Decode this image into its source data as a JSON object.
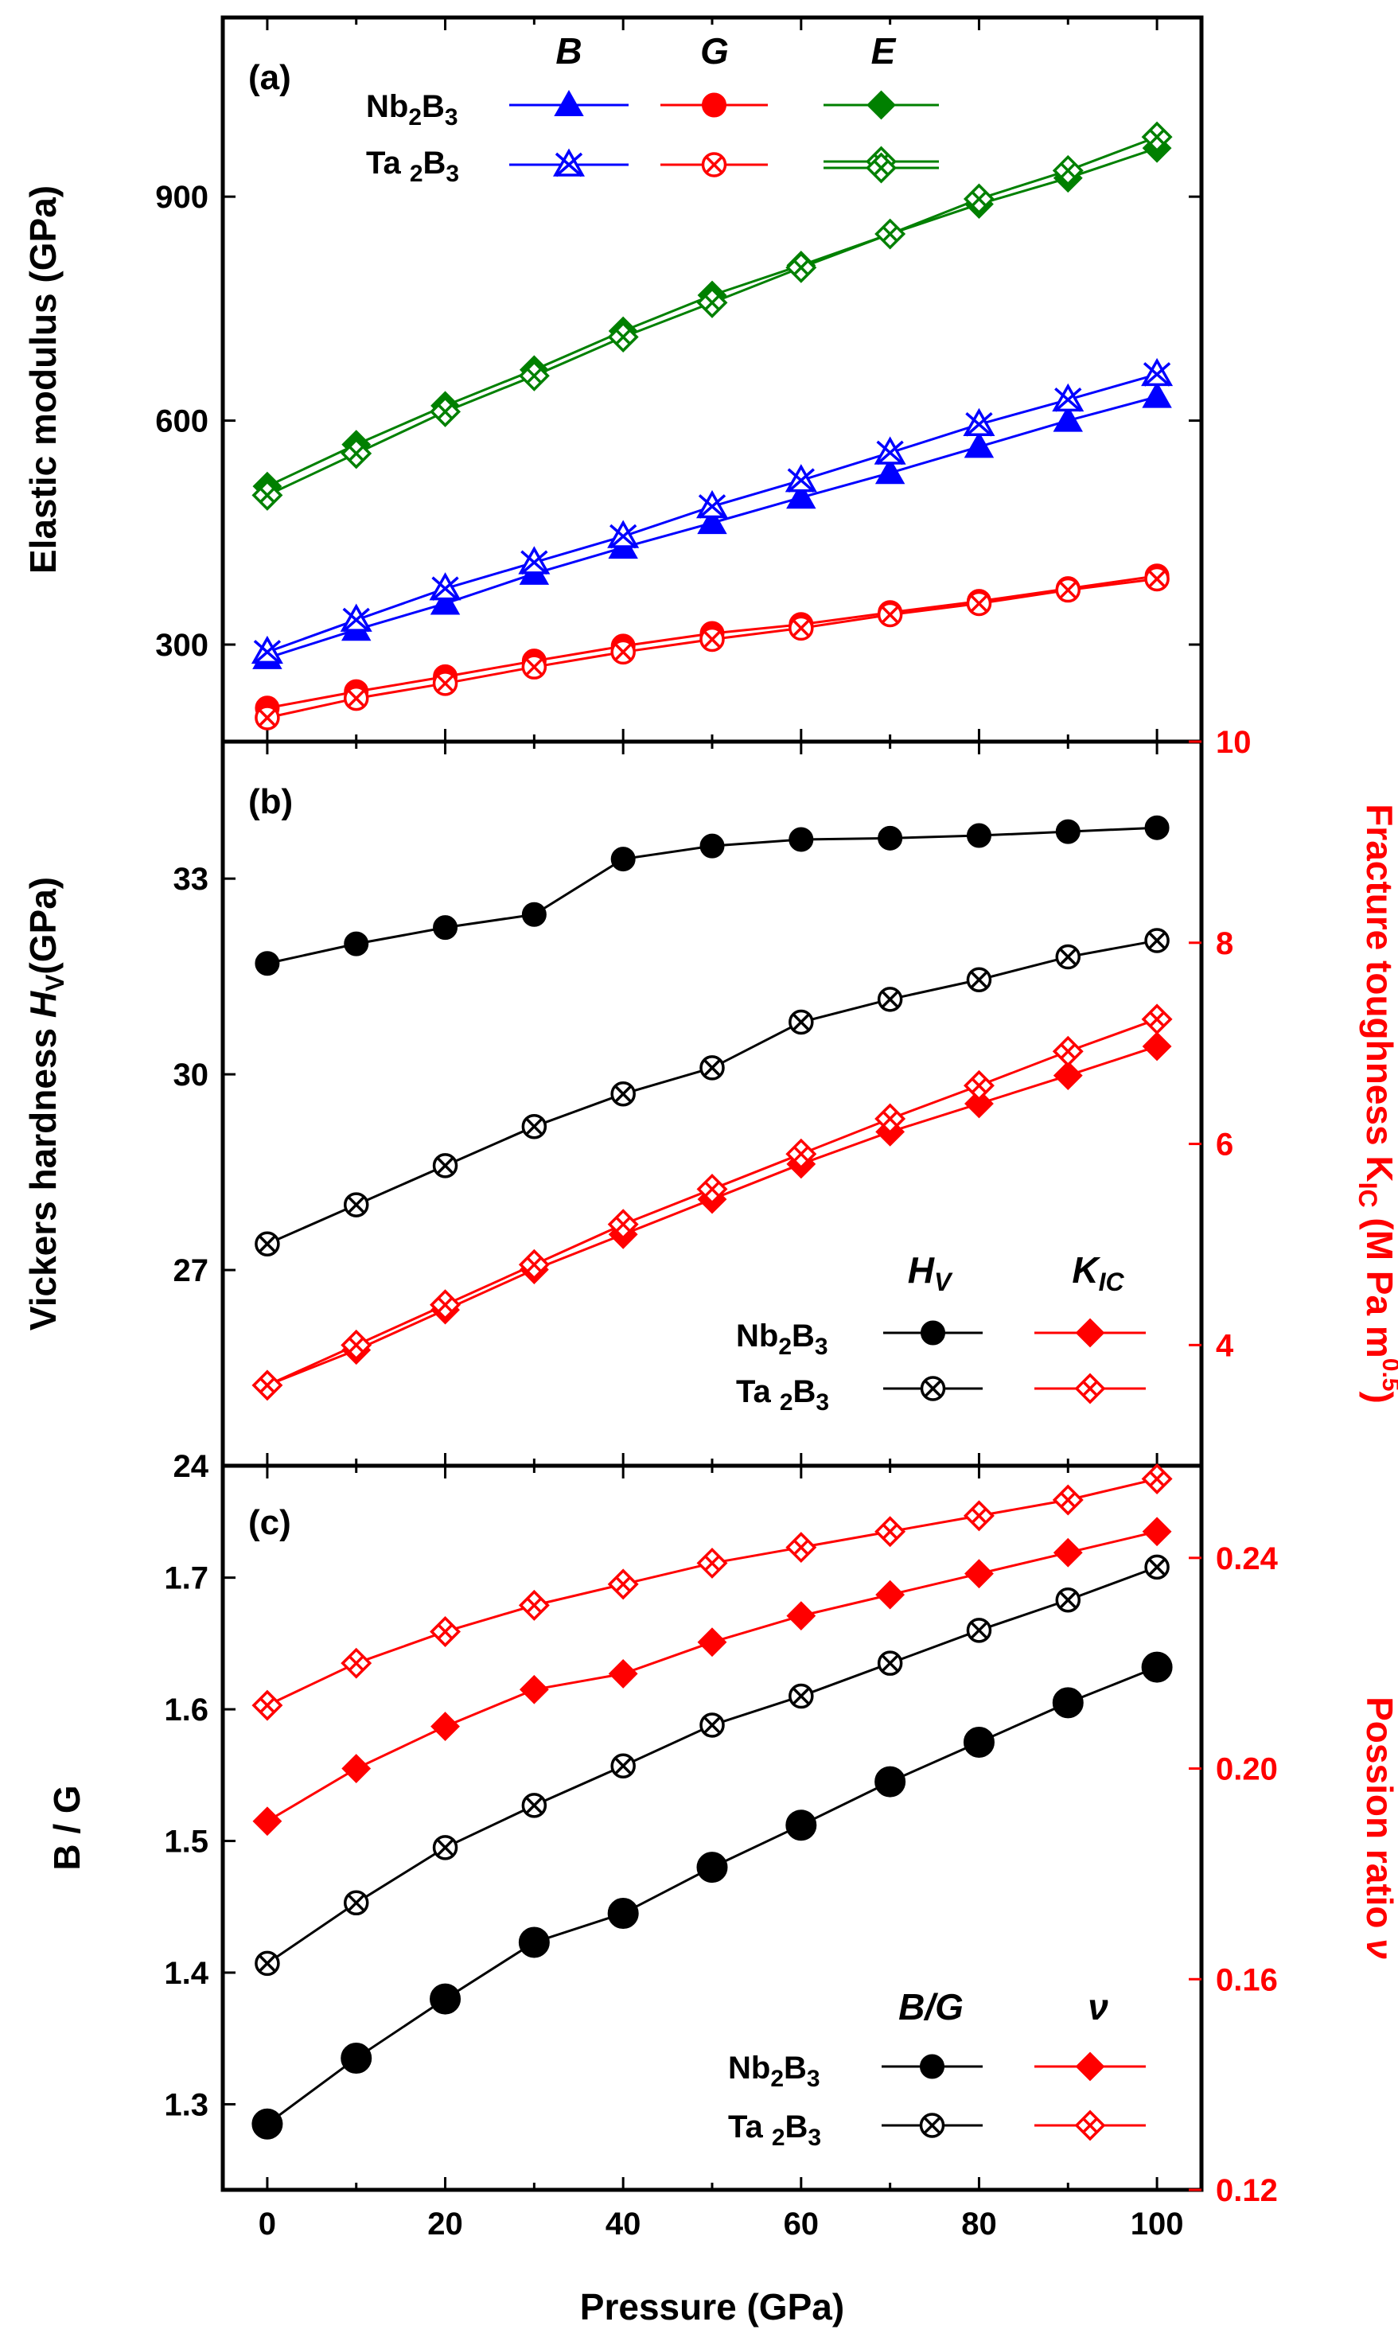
{
  "x_axis": {
    "label": "Pressure (GPa)",
    "range": [
      -5,
      105
    ],
    "ticks": [
      0,
      20,
      40,
      60,
      80,
      100
    ]
  },
  "colors": {
    "blue": "#0000ff",
    "red": "#ff0000",
    "green": "#008000",
    "black": "#000000"
  },
  "chart_data": [
    {
      "panel": "(a)",
      "type": "line",
      "ylabel": "Elastic modulus (GPa)",
      "ylim": [
        170,
        1140
      ],
      "yticks": [
        300,
        600,
        900
      ],
      "x": [
        0,
        10,
        20,
        30,
        40,
        50,
        60,
        70,
        80,
        90,
        100
      ],
      "legend_headers": [
        "B",
        "G",
        "E"
      ],
      "legend_rows": [
        "Nb2B3",
        "Ta2B3"
      ],
      "series": [
        {
          "material": "Nb2B3",
          "quantity": "B",
          "color": "#0000ff",
          "marker": "triangle-filled",
          "values": [
            282,
            320,
            355,
            395,
            430,
            463,
            497,
            530,
            565,
            600,
            632
          ]
        },
        {
          "material": "Ta2B3",
          "quantity": "B",
          "color": "#0000ff",
          "marker": "triangle-cross-open",
          "values": [
            290,
            333,
            375,
            410,
            445,
            485,
            520,
            557,
            595,
            628,
            662
          ]
        },
        {
          "material": "Nb2B3",
          "quantity": "G",
          "color": "#ff0000",
          "marker": "circle-filled",
          "values": [
            215,
            237,
            257,
            278,
            298,
            315,
            327,
            343,
            358,
            375,
            392
          ]
        },
        {
          "material": "Ta2B3",
          "quantity": "G",
          "color": "#ff0000",
          "marker": "circle-cross-open",
          "values": [
            202,
            228,
            248,
            270,
            290,
            307,
            322,
            340,
            355,
            373,
            388
          ]
        },
        {
          "material": "Nb2B3",
          "quantity": "E",
          "color": "#008000",
          "marker": "diamond-filled",
          "values": [
            512,
            568,
            620,
            668,
            720,
            768,
            808,
            850,
            890,
            925,
            965
          ]
        },
        {
          "material": "Ta2B3",
          "quantity": "E",
          "color": "#008000",
          "marker": "diamond-cross-open",
          "values": [
            500,
            556,
            612,
            660,
            712,
            758,
            805,
            850,
            897,
            935,
            980
          ]
        }
      ]
    },
    {
      "panel": "(b)",
      "type": "line",
      "ylabel": "Vickers hardness H_V (GPa)",
      "ylim": [
        24,
        35.1
      ],
      "yticks": [
        24,
        27,
        30,
        33
      ],
      "y2label": "Fracture toughness K_IC (M Pa m^0.5)",
      "y2lim": [
        2.8,
        10
      ],
      "y2ticks": [
        4,
        6,
        8,
        10
      ],
      "x": [
        0,
        10,
        20,
        30,
        40,
        50,
        60,
        70,
        80,
        90,
        100
      ],
      "legend_headers": [
        "HV",
        "KIC"
      ],
      "legend_rows": [
        "Nb2B3",
        "Ta2B3"
      ],
      "series": [
        {
          "material": "Nb2B3",
          "quantity": "HV",
          "axis": "left",
          "color": "#000000",
          "marker": "circle-filled",
          "values": [
            31.7,
            32.0,
            32.25,
            32.45,
            33.3,
            33.5,
            33.6,
            33.62,
            33.66,
            33.72,
            33.78
          ]
        },
        {
          "material": "Ta2B3",
          "quantity": "HV",
          "axis": "left",
          "color": "#000000",
          "marker": "circle-cross-open",
          "values": [
            27.4,
            28.0,
            28.6,
            29.2,
            29.7,
            30.1,
            30.8,
            31.15,
            31.45,
            31.8,
            32.05
          ]
        },
        {
          "material": "Nb2B3",
          "quantity": "KIC",
          "axis": "right",
          "color": "#ff0000",
          "marker": "diamond-filled",
          "values": [
            3.6,
            3.95,
            4.35,
            4.75,
            5.1,
            5.45,
            5.8,
            6.12,
            6.4,
            6.68,
            6.97
          ]
        },
        {
          "material": "Ta2B3",
          "quantity": "KIC",
          "axis": "right",
          "color": "#ff0000",
          "marker": "diamond-cross-open",
          "values": [
            3.6,
            4.0,
            4.4,
            4.8,
            5.2,
            5.55,
            5.9,
            6.25,
            6.58,
            6.92,
            7.24
          ]
        }
      ]
    },
    {
      "panel": "(c)",
      "type": "line",
      "ylabel": "B / G",
      "ylim": [
        1.235,
        1.785
      ],
      "yticks": [
        1.3,
        1.4,
        1.5,
        1.6,
        1.7
      ],
      "y2label": "Possion ratio ν",
      "y2lim": [
        0.12,
        0.2575
      ],
      "y2ticks": [
        0.12,
        0.16,
        0.2,
        0.24
      ],
      "x": [
        0,
        10,
        20,
        30,
        40,
        50,
        60,
        70,
        80,
        90,
        100
      ],
      "legend_headers": [
        "B/G",
        "ν"
      ],
      "legend_rows": [
        "Nb2B3",
        "Ta2B3"
      ],
      "series": [
        {
          "material": "Nb2B3",
          "quantity": "B/G",
          "axis": "left",
          "color": "#000000",
          "marker": "circle-filled-large",
          "values": [
            1.285,
            1.335,
            1.38,
            1.423,
            1.445,
            1.48,
            1.512,
            1.545,
            1.575,
            1.605,
            1.632
          ]
        },
        {
          "material": "Ta2B3",
          "quantity": "B/G",
          "axis": "left",
          "color": "#000000",
          "marker": "circle-cross-open",
          "values": [
            1.407,
            1.453,
            1.495,
            1.527,
            1.557,
            1.588,
            1.61,
            1.635,
            1.66,
            1.683,
            1.708
          ]
        },
        {
          "material": "Nb2B3",
          "quantity": "ν",
          "axis": "right",
          "color": "#ff0000",
          "marker": "diamond-filled",
          "values": [
            0.19,
            0.2,
            0.208,
            0.215,
            0.218,
            0.224,
            0.229,
            0.233,
            0.237,
            0.241,
            0.245
          ]
        },
        {
          "material": "Ta2B3",
          "quantity": "ν",
          "axis": "right",
          "color": "#ff0000",
          "marker": "diamond-cross-open",
          "values": [
            0.212,
            0.22,
            0.226,
            0.231,
            0.235,
            0.239,
            0.242,
            0.245,
            0.248,
            0.251,
            0.255
          ]
        }
      ]
    }
  ]
}
